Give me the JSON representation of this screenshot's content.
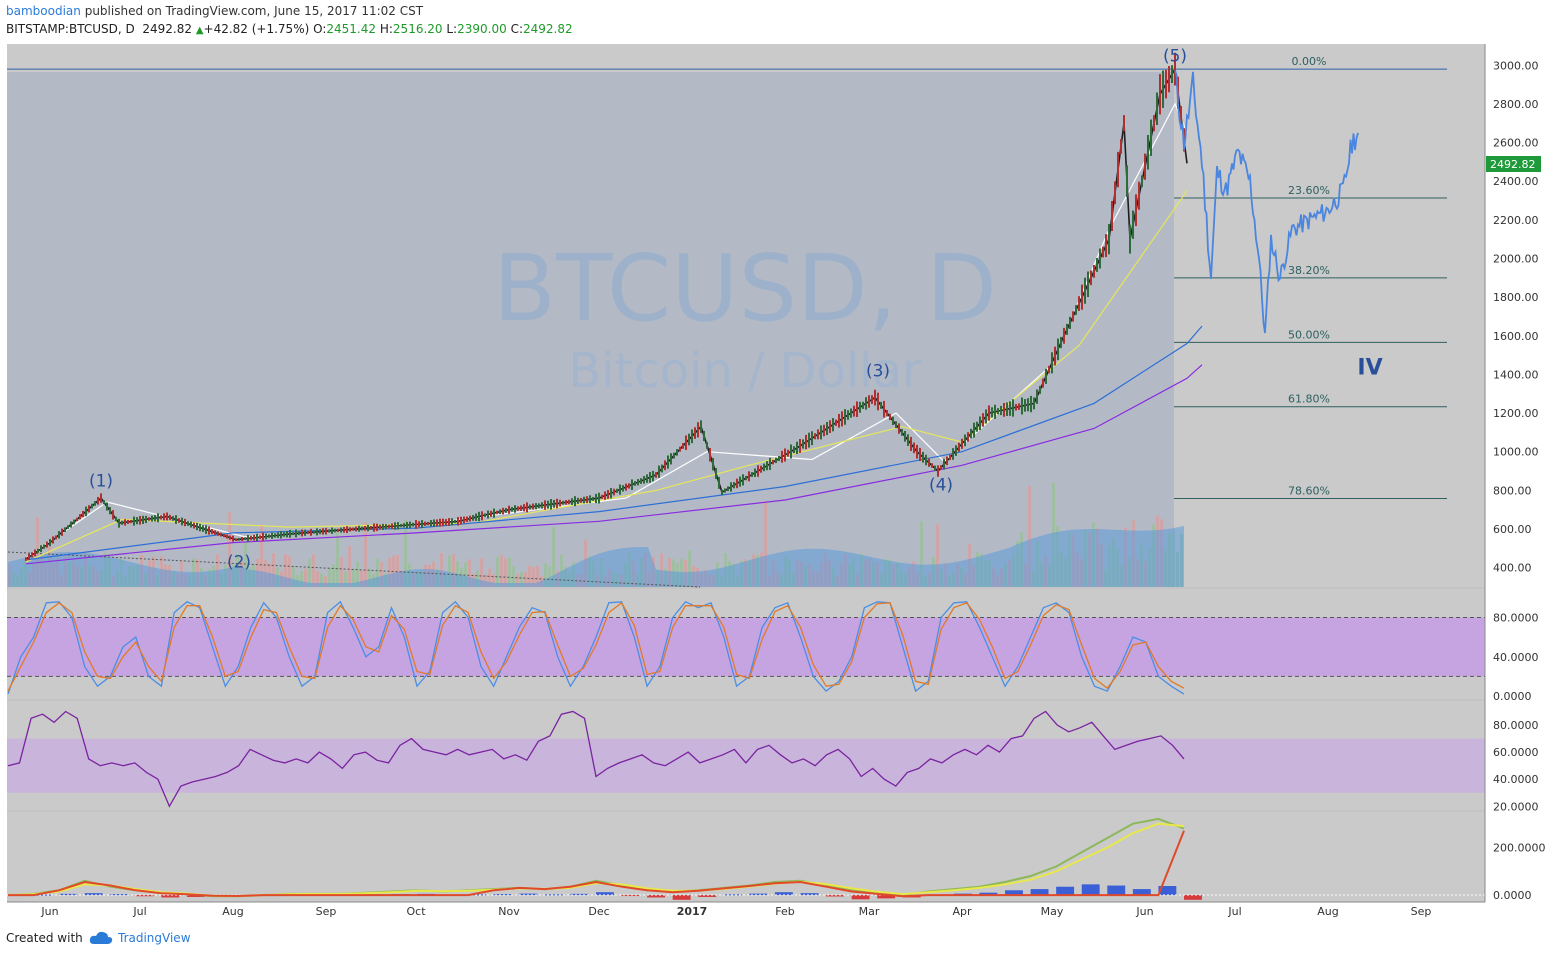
{
  "header": {
    "author": "bamboodian",
    "published": "published on TradingView.com, June 15, 2017 11:02 CST",
    "symbol": "BITSTAMP:BTCUSD, D",
    "last": "2492.82",
    "change": "+42.82 (+1.75%)",
    "o_label": "O:",
    "o_value": "2451.42",
    "h_label": "H:",
    "h_value": "2516.20",
    "l_label": "L:",
    "l_value": "2390.00",
    "c_label": "C:",
    "c_value": "2492.82"
  },
  "watermark": {
    "title": "BTCUSD, D",
    "subtitle": "Bitcoin / Dollar"
  },
  "price_badge": "2492.82",
  "footer": {
    "created_with": "Created with",
    "brand": "TradingView"
  },
  "colors": {
    "panel_bg": "#cacaca",
    "shade": "#b3bac6",
    "candle_up": "#2f6b3a",
    "candle_down": "#b03030",
    "projection": "#4a86e0",
    "fib_line": "#2f5f5f",
    "wave_label": "#2a4f9a",
    "stoch_band": "#c59ee6",
    "rsi_band": "#c9b0de",
    "rsi_line": "#7a23a0",
    "ma_white": "#ffffff",
    "ma_yellow": "#e6e65a",
    "ma_blue": "#2d6fd6",
    "ma_purple": "#8a2be2",
    "price_badge": "#1f9a3a"
  },
  "chart_data": [
    {
      "type": "line",
      "title": "BTCUSD, D",
      "subtitle": "Bitcoin / Dollar",
      "y_axis_ticks": [
        3000,
        2800,
        2600,
        2400,
        2200,
        2000,
        1800,
        1600,
        1400,
        1200,
        1000,
        800,
        600,
        400
      ],
      "y_axis_labels": [
        "3000.00",
        "2800.00",
        "2600.00",
        "2400.00",
        "2200.00",
        "2000.00",
        "1800.00",
        "1600.00",
        "1400.00",
        "1200.00",
        "1000.00",
        "800.00",
        "600.00",
        "400.00"
      ],
      "ylim": [
        300,
        3110
      ],
      "x_axis_labels": [
        "Jun",
        "Jul",
        "Aug",
        "Sep",
        "Oct",
        "Nov",
        "Dec",
        "2017",
        "Feb",
        "Mar",
        "Apr",
        "May",
        "Jun",
        "Jul",
        "Aug",
        "Sep"
      ],
      "price_series": {
        "dates": [
          "2016-05-24",
          "2016-06-01",
          "2016-06-10",
          "2016-06-18",
          "2016-06-24",
          "2016-07-10",
          "2016-08-02",
          "2016-08-20",
          "2016-09-15",
          "2016-10-15",
          "2016-11-01",
          "2016-12-01",
          "2016-12-20",
          "2017-01-04",
          "2017-01-11",
          "2017-02-05",
          "2017-03-03",
          "2017-03-17",
          "2017-03-24",
          "2017-04-10",
          "2017-04-25",
          "2017-05-05",
          "2017-05-20",
          "2017-05-25",
          "2017-05-27",
          "2017-06-06",
          "2017-06-11",
          "2017-06-15"
        ],
        "close": [
          445,
          530,
          650,
          760,
          630,
          665,
          545,
          575,
          605,
          640,
          700,
          760,
          880,
          1130,
          790,
          1020,
          1280,
          1000,
          900,
          1200,
          1250,
          1600,
          2100,
          2700,
          2100,
          2850,
          2980,
          2492
        ]
      },
      "moving_averages": [
        {
          "color": "ma_white",
          "dates": [
            "2016-05-24",
            "2016-06-20",
            "2016-08-05",
            "2016-10-01",
            "2016-12-10",
            "2017-01-06",
            "2017-02-10",
            "2017-03-10",
            "2017-03-26",
            "2017-05-01",
            "2017-05-20",
            "2017-06-11",
            "2017-06-15"
          ],
          "values": [
            450,
            740,
            560,
            620,
            760,
            1000,
            960,
            1200,
            950,
            1450,
            2150,
            2800,
            2650
          ]
        },
        {
          "color": "ma_yellow",
          "dates": [
            "2016-05-24",
            "2016-06-25",
            "2016-08-20",
            "2016-10-20",
            "2016-12-20",
            "2017-01-20",
            "2017-03-12",
            "2017-04-01",
            "2017-05-10",
            "2017-06-15"
          ],
          "values": [
            430,
            650,
            610,
            630,
            800,
            930,
            1130,
            1050,
            1550,
            2350
          ]
        },
        {
          "color": "ma_blue",
          "dates": [
            "2016-05-24",
            "2016-08-01",
            "2016-10-01",
            "2016-12-01",
            "2017-02-01",
            "2017-04-01",
            "2017-05-15",
            "2017-06-15",
            "2017-06-20"
          ],
          "values": [
            440,
            580,
            605,
            690,
            820,
            1000,
            1250,
            1560,
            1650
          ]
        },
        {
          "color": "ma_purple",
          "dates": [
            "2016-05-24",
            "2016-08-01",
            "2016-10-01",
            "2016-12-01",
            "2017-02-01",
            "2017-04-01",
            "2017-05-15",
            "2017-06-15",
            "2017-06-20"
          ],
          "values": [
            420,
            530,
            580,
            640,
            750,
            930,
            1120,
            1380,
            1450
          ]
        }
      ],
      "projection": {
        "dates": [
          "2017-06-11",
          "2017-06-14",
          "2017-06-17",
          "2017-06-20",
          "2017-06-23",
          "2017-06-25",
          "2017-06-28",
          "2017-07-02",
          "2017-07-06",
          "2017-07-09",
          "2017-07-11",
          "2017-07-13",
          "2017-07-16",
          "2017-07-20",
          "2017-07-26",
          "2017-08-01",
          "2017-08-06",
          "2017-08-09",
          "2017-08-11"
        ],
        "values": [
          2950,
          2600,
          2900,
          2500,
          1900,
          2450,
          2350,
          2550,
          2400,
          2000,
          1600,
          2100,
          1900,
          2150,
          2200,
          2250,
          2350,
          2600,
          2650
        ]
      },
      "fibonacci_levels": [
        {
          "label": "0.00%",
          "price": 2980
        },
        {
          "label": "23.60%",
          "price": 2313
        },
        {
          "label": "38.20%",
          "price": 1900
        },
        {
          "label": "50.00%",
          "price": 1566
        },
        {
          "label": "61.80%",
          "price": 1233
        },
        {
          "label": "78.60%",
          "price": 758
        }
      ],
      "wave_labels": [
        {
          "label": "(1)",
          "date": "2016-06-18",
          "price": 820
        },
        {
          "label": "(2)",
          "date": "2016-08-03",
          "price": 400
        },
        {
          "label": "(3)",
          "date": "2017-03-04",
          "price": 1390
        },
        {
          "label": "(4)",
          "date": "2017-03-25",
          "price": 800
        },
        {
          "label": "(5)",
          "date": "2017-06-11",
          "price": 3020
        },
        {
          "label": "IV",
          "date": "2017-08-15",
          "price": 1400
        }
      ]
    },
    {
      "type": "line",
      "title": "",
      "y_axis_labels": [
        "80.0000",
        "40.0000",
        "0.0000"
      ],
      "ylim": [
        -2,
        108
      ],
      "band": [
        20,
        80
      ],
      "series": [
        {
          "color": "#4a8ee6",
          "values": [
            2,
            40,
            60,
            95,
            96,
            80,
            30,
            10,
            20,
            50,
            60,
            20,
            10,
            85,
            96,
            90,
            50,
            10,
            30,
            70,
            95,
            80,
            40,
            10,
            20,
            85,
            96,
            70,
            40,
            50,
            90,
            60,
            10,
            25,
            85,
            96,
            80,
            30,
            10,
            40,
            70,
            90,
            85,
            40,
            10,
            30,
            60,
            95,
            96,
            60,
            10,
            30,
            80,
            96,
            90,
            95,
            60,
            10,
            20,
            70,
            90,
            95,
            60,
            20,
            5,
            15,
            40,
            90,
            96,
            95,
            50,
            5,
            15,
            80,
            95,
            96,
            70,
            40,
            10,
            30,
            60,
            90,
            95,
            85,
            40,
            10,
            5,
            30,
            60,
            55,
            20,
            10,
            2
          ]
        },
        {
          "color": "#e07a2a",
          "values": [
            5,
            30,
            55,
            85,
            95,
            85,
            45,
            20,
            18,
            40,
            55,
            30,
            15,
            70,
            92,
            92,
            60,
            20,
            25,
            60,
            88,
            85,
            50,
            20,
            18,
            70,
            92,
            78,
            50,
            45,
            82,
            68,
            25,
            22,
            72,
            92,
            85,
            45,
            18,
            35,
            62,
            85,
            86,
            52,
            20,
            28,
            52,
            85,
            95,
            72,
            22,
            25,
            70,
            92,
            92,
            92,
            70,
            22,
            18,
            58,
            86,
            92,
            70,
            32,
            10,
            12,
            35,
            80,
            94,
            95,
            62,
            15,
            12,
            68,
            90,
            95,
            78,
            50,
            18,
            25,
            52,
            82,
            93,
            88,
            52,
            18,
            8,
            25,
            52,
            55,
            30,
            15,
            8
          ]
        }
      ]
    },
    {
      "type": "line",
      "title": "",
      "y_axis_labels": [
        "80.0000",
        "60.0000",
        "40.0000",
        "20.0000"
      ],
      "ylim": [
        18,
        97
      ],
      "band": [
        30,
        70
      ],
      "series": [
        {
          "color": "rsi_line",
          "values": [
            50,
            52,
            85,
            88,
            82,
            90,
            85,
            55,
            50,
            52,
            50,
            52,
            45,
            40,
            20,
            35,
            38,
            40,
            42,
            45,
            50,
            62,
            58,
            54,
            52,
            55,
            52,
            60,
            55,
            48,
            58,
            60,
            54,
            52,
            65,
            70,
            62,
            60,
            58,
            62,
            58,
            60,
            62,
            55,
            58,
            54,
            68,
            72,
            88,
            90,
            85,
            42,
            48,
            52,
            55,
            58,
            52,
            50,
            55,
            60,
            52,
            55,
            58,
            62,
            52,
            62,
            65,
            58,
            52,
            55,
            50,
            58,
            62,
            55,
            42,
            48,
            40,
            35,
            45,
            48,
            55,
            52,
            58,
            62,
            58,
            65,
            60,
            70,
            72,
            85,
            90,
            80,
            75,
            78,
            82,
            72,
            62,
            65,
            68,
            70,
            72,
            65,
            55
          ]
        }
      ]
    },
    {
      "type": "line",
      "title": "",
      "y_axis_labels": [
        "200.0000",
        "0.0000"
      ],
      "ylim": [
        -25,
        345
      ],
      "series": [
        {
          "color": "#8db85a",
          "values": [
            0,
            5,
            20,
            60,
            35,
            20,
            10,
            5,
            -5,
            -5,
            0,
            5,
            5,
            5,
            10,
            15,
            20,
            15,
            20,
            25,
            30,
            25,
            35,
            60,
            40,
            20,
            15,
            20,
            30,
            40,
            55,
            60,
            40,
            20,
            10,
            0,
            15,
            25,
            35,
            55,
            80,
            120,
            180,
            240,
            300,
            320,
            280
          ]
        },
        {
          "color": "#e8e84a",
          "values": [
            0,
            4,
            15,
            45,
            40,
            25,
            12,
            6,
            -3,
            -4,
            0,
            4,
            5,
            5,
            8,
            12,
            18,
            16,
            18,
            22,
            28,
            26,
            30,
            50,
            45,
            28,
            18,
            18,
            26,
            36,
            48,
            56,
            46,
            28,
            14,
            4,
            12,
            20,
            30,
            45,
            65,
            100,
            150,
            200,
            260,
            300,
            290
          ]
        },
        {
          "color": "#e04a2a",
          "values": [
            0,
            0,
            20,
            55,
            40,
            20,
            8,
            3,
            -3,
            -4,
            0,
            0,
            0,
            0,
            0,
            0,
            0,
            0,
            0,
            20,
            30,
            25,
            35,
            55,
            35,
            20,
            12,
            18,
            28,
            38,
            50,
            55,
            35,
            15,
            5,
            -5,
            0,
            0,
            0,
            0,
            0,
            0,
            0,
            0,
            0,
            0,
            270
          ]
        }
      ],
      "histogram": [
        0,
        2,
        5,
        8,
        4,
        -5,
        -10,
        -8,
        -6,
        -4,
        0,
        2,
        3,
        2,
        3,
        4,
        5,
        2,
        3,
        4,
        6,
        3,
        5,
        12,
        -4,
        -10,
        -20,
        -8,
        3,
        6,
        12,
        8,
        -6,
        -18,
        -14,
        -10,
        2,
        6,
        10,
        20,
        25,
        35,
        45,
        40,
        25,
        38,
        -20
      ]
    }
  ]
}
